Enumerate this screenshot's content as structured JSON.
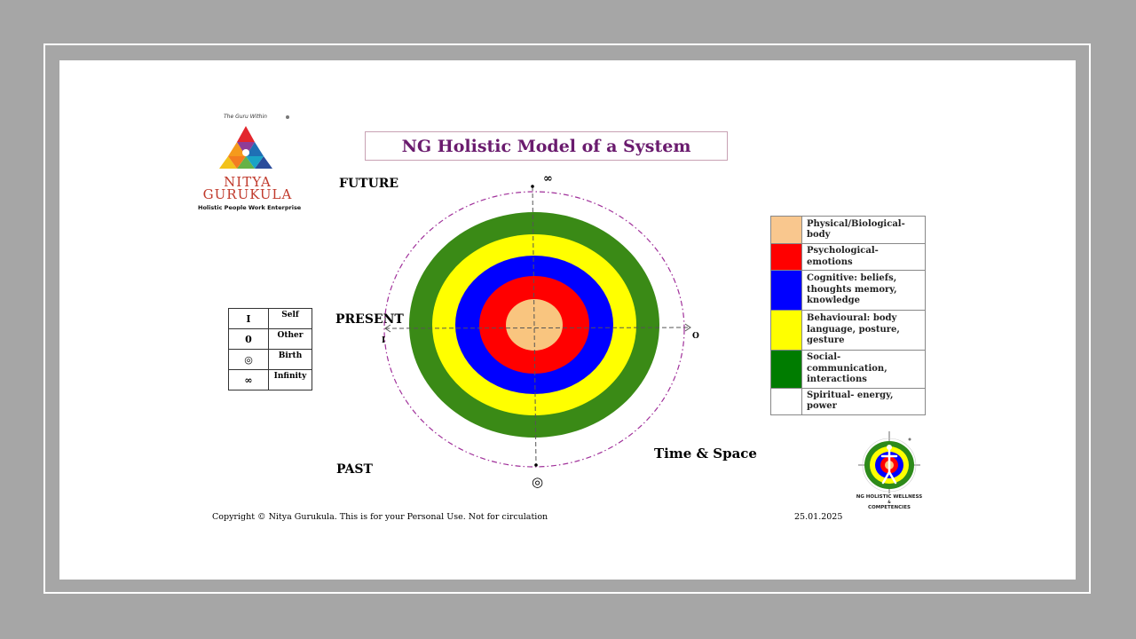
{
  "logo": {
    "tagline": "The Guru Within",
    "name_line1": "NITYA",
    "name_line2": "GURUKULA",
    "subtitle": "Holistic People Work Enterprise"
  },
  "title": "NG Holistic Model of a System",
  "directions": {
    "future": "FUTURE",
    "present": "PRESENT",
    "past": "PAST",
    "time_space": "Time & Space"
  },
  "axis_marks": {
    "top": "∞",
    "left": "I",
    "right": "O",
    "bottom": "◎"
  },
  "symbol_key": [
    {
      "symbol": "I",
      "label": "Self"
    },
    {
      "symbol": "0",
      "label": "Other"
    },
    {
      "symbol": "◎",
      "label": "Birth"
    },
    {
      "symbol": "∞",
      "label": "Infinity"
    }
  ],
  "rings": [
    {
      "layer": "Social",
      "color": "#3a8a16"
    },
    {
      "layer": "Behavioural",
      "color": "#ffff00"
    },
    {
      "layer": "Cognitive",
      "color": "#0000ff"
    },
    {
      "layer": "Psychological",
      "color": "#ff0000"
    },
    {
      "layer": "Physical",
      "color": "#f9c57f"
    }
  ],
  "outer_ring_color": "#a0309a",
  "legend": [
    {
      "color": "#f9c78e",
      "text": "Physical/Biological-body"
    },
    {
      "color": "#ff0000",
      "text": "Psychological-emotions"
    },
    {
      "color": "#0000ff",
      "text": "Cognitive: beliefs, thoughts memory, knowledge"
    },
    {
      "color": "#ffff00",
      "text": "Behavioural: body language, posture, gesture"
    },
    {
      "color": "#007c00",
      "text": "Social- communication, interactions"
    },
    {
      "color": "#ffffff",
      "text": "Spiritual- energy, power"
    }
  ],
  "badge": {
    "line1": "NG HOLISTIC WELLNESS",
    "line2": "&",
    "line3": "COMPETENCIES"
  },
  "footer": {
    "copyright": "Copyright © Nitya Gurukula. This is for your Personal Use. Not for circulation",
    "date": "25.01.2025"
  }
}
